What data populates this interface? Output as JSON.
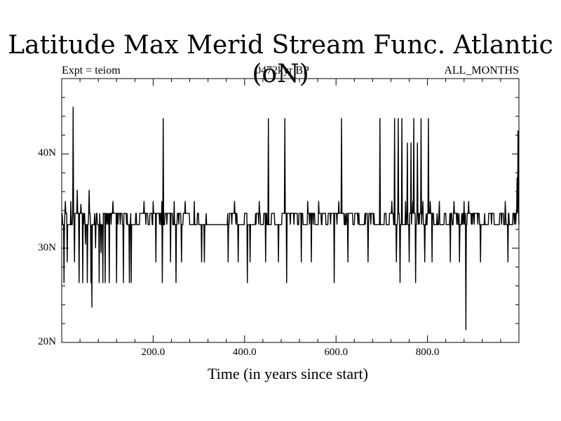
{
  "chart_data": {
    "type": "line",
    "title": "Latitude Max Merid Stream Func. Atlantic (oN)",
    "subtitle_left": "Expt = teiom",
    "subtitle_center": "0472kyr BP",
    "subtitle_right": "ALL_MONTHS",
    "xlabel": "Time (in years since start)",
    "ylabel": "",
    "xlim": [
      0,
      1000
    ],
    "ylim": [
      20,
      48
    ],
    "x_ticks": [
      200,
      400,
      600,
      800
    ],
    "x_tick_labels": [
      "200.0",
      "400.0",
      "600.0",
      "800.0"
    ],
    "y_ticks": [
      20,
      30,
      40
    ],
    "y_tick_labels": [
      "20N",
      "30N",
      "40N"
    ],
    "grid": false,
    "baseline": 33.7,
    "lower_level": 32.5,
    "series": [
      {
        "events": [
          [
            5,
            26.3
          ],
          [
            8,
            35.0
          ],
          [
            12,
            28.5
          ],
          [
            20,
            35.0
          ],
          [
            25,
            45.0
          ],
          [
            28,
            28.5
          ],
          [
            34,
            36.2
          ],
          [
            38,
            26.3
          ],
          [
            42,
            34.7
          ],
          [
            46,
            26.3
          ],
          [
            52,
            30.4
          ],
          [
            56,
            26.3
          ],
          [
            60,
            36.2
          ],
          [
            64,
            26.3
          ],
          [
            66,
            23.7
          ],
          [
            70,
            32.5
          ],
          [
            74,
            30.0
          ],
          [
            78,
            32.5
          ],
          [
            82,
            26.3
          ],
          [
            86,
            29.5
          ],
          [
            90,
            26.3
          ],
          [
            95,
            26.3
          ],
          [
            100,
            32.5
          ],
          [
            104,
            26.3
          ],
          [
            108,
            32.5
          ],
          [
            112,
            35.0
          ],
          [
            120,
            26.3
          ],
          [
            128,
            32.5
          ],
          [
            135,
            26.3
          ],
          [
            142,
            32.5
          ],
          [
            148,
            26.3
          ],
          [
            152,
            26.3
          ],
          [
            160,
            32.5
          ],
          [
            170,
            32.5
          ],
          [
            180,
            35.0
          ],
          [
            190,
            32.5
          ],
          [
            200,
            35.0
          ],
          [
            206,
            28.5
          ],
          [
            214,
            32.5
          ],
          [
            219,
            35.0
          ],
          [
            220,
            26.3
          ],
          [
            222,
            43.8
          ],
          [
            230,
            32.5
          ],
          [
            238,
            28.5
          ],
          [
            246,
            35.0
          ],
          [
            250,
            26.3
          ],
          [
            256,
            32.5
          ],
          [
            262,
            28.5
          ],
          [
            270,
            35.0
          ],
          [
            280,
            32.5
          ],
          [
            290,
            35.0
          ],
          [
            300,
            32.5
          ],
          [
            306,
            28.5
          ],
          [
            312,
            28.5
          ],
          [
            318,
            32.5
          ],
          [
            330,
            32.5
          ],
          [
            340,
            32.5
          ],
          [
            350,
            32.5
          ],
          [
            358,
            32.5
          ],
          [
            364,
            28.5
          ],
          [
            372,
            32.5
          ],
          [
            378,
            35.0
          ],
          [
            386,
            28.5
          ],
          [
            396,
            32.5
          ],
          [
            406,
            26.3
          ],
          [
            412,
            28.5
          ],
          [
            418,
            32.5
          ],
          [
            425,
            32.5
          ],
          [
            432,
            35.0
          ],
          [
            440,
            32.5
          ],
          [
            446,
            28.5
          ],
          [
            452,
            43.8
          ],
          [
            458,
            32.5
          ],
          [
            466,
            32.5
          ],
          [
            474,
            28.5
          ],
          [
            480,
            32.5
          ],
          [
            488,
            43.8
          ],
          [
            492,
            26.3
          ],
          [
            500,
            32.5
          ],
          [
            508,
            32.5
          ],
          [
            516,
            32.5
          ],
          [
            524,
            28.5
          ],
          [
            532,
            32.5
          ],
          [
            538,
            35.0
          ],
          [
            546,
            28.5
          ],
          [
            550,
            32.5
          ],
          [
            556,
            32.5
          ],
          [
            562,
            35.0
          ],
          [
            568,
            32.5
          ],
          [
            582,
            32.5
          ],
          [
            588,
            32.5
          ],
          [
            596,
            26.3
          ],
          [
            602,
            32.5
          ],
          [
            606,
            35.0
          ],
          [
            612,
            43.8
          ],
          [
            618,
            32.5
          ],
          [
            626,
            28.5
          ],
          [
            640,
            32.5
          ],
          [
            648,
            32.5
          ],
          [
            664,
            32.5
          ],
          [
            670,
            28.5
          ],
          [
            676,
            32.5
          ],
          [
            682,
            32.5
          ],
          [
            690,
            32.5
          ],
          [
            696,
            43.8
          ],
          [
            700,
            32.5
          ],
          [
            704,
            32.5
          ],
          [
            710,
            32.5
          ],
          [
            716,
            32.5
          ],
          [
            722,
            35.0
          ],
          [
            728,
            43.8
          ],
          [
            732,
            28.5
          ],
          [
            736,
            43.8
          ],
          [
            740,
            26.3
          ],
          [
            744,
            43.8
          ],
          [
            748,
            32.5
          ],
          [
            752,
            35.0
          ],
          [
            756,
            41.2
          ],
          [
            760,
            28.5
          ],
          [
            764,
            41.2
          ],
          [
            768,
            35.0
          ],
          [
            770,
            43.8
          ],
          [
            774,
            26.3
          ],
          [
            778,
            41.2
          ],
          [
            782,
            32.5
          ],
          [
            786,
            43.8
          ],
          [
            790,
            35.0
          ],
          [
            794,
            28.5
          ],
          [
            798,
            32.5
          ],
          [
            802,
            43.8
          ],
          [
            806,
            35.0
          ],
          [
            810,
            28.5
          ],
          [
            820,
            32.5
          ],
          [
            826,
            35.0
          ],
          [
            834,
            32.5
          ],
          [
            842,
            32.5
          ],
          [
            850,
            28.5
          ],
          [
            858,
            35.0
          ],
          [
            864,
            32.5
          ],
          [
            870,
            28.5
          ],
          [
            876,
            32.5
          ],
          [
            880,
            35.0
          ],
          [
            884,
            21.3
          ],
          [
            890,
            35.0
          ],
          [
            896,
            32.5
          ],
          [
            902,
            32.5
          ],
          [
            910,
            32.5
          ],
          [
            916,
            28.5
          ],
          [
            920,
            32.5
          ],
          [
            930,
            32.5
          ],
          [
            940,
            32.5
          ],
          [
            950,
            32.5
          ],
          [
            962,
            32.5
          ],
          [
            970,
            35.0
          ],
          [
            976,
            28.5
          ],
          [
            982,
            32.5
          ],
          [
            990,
            32.5
          ],
          [
            996,
            37.5
          ],
          [
            998,
            42.5
          ],
          [
            999,
            35.0
          ]
        ]
      }
    ]
  }
}
